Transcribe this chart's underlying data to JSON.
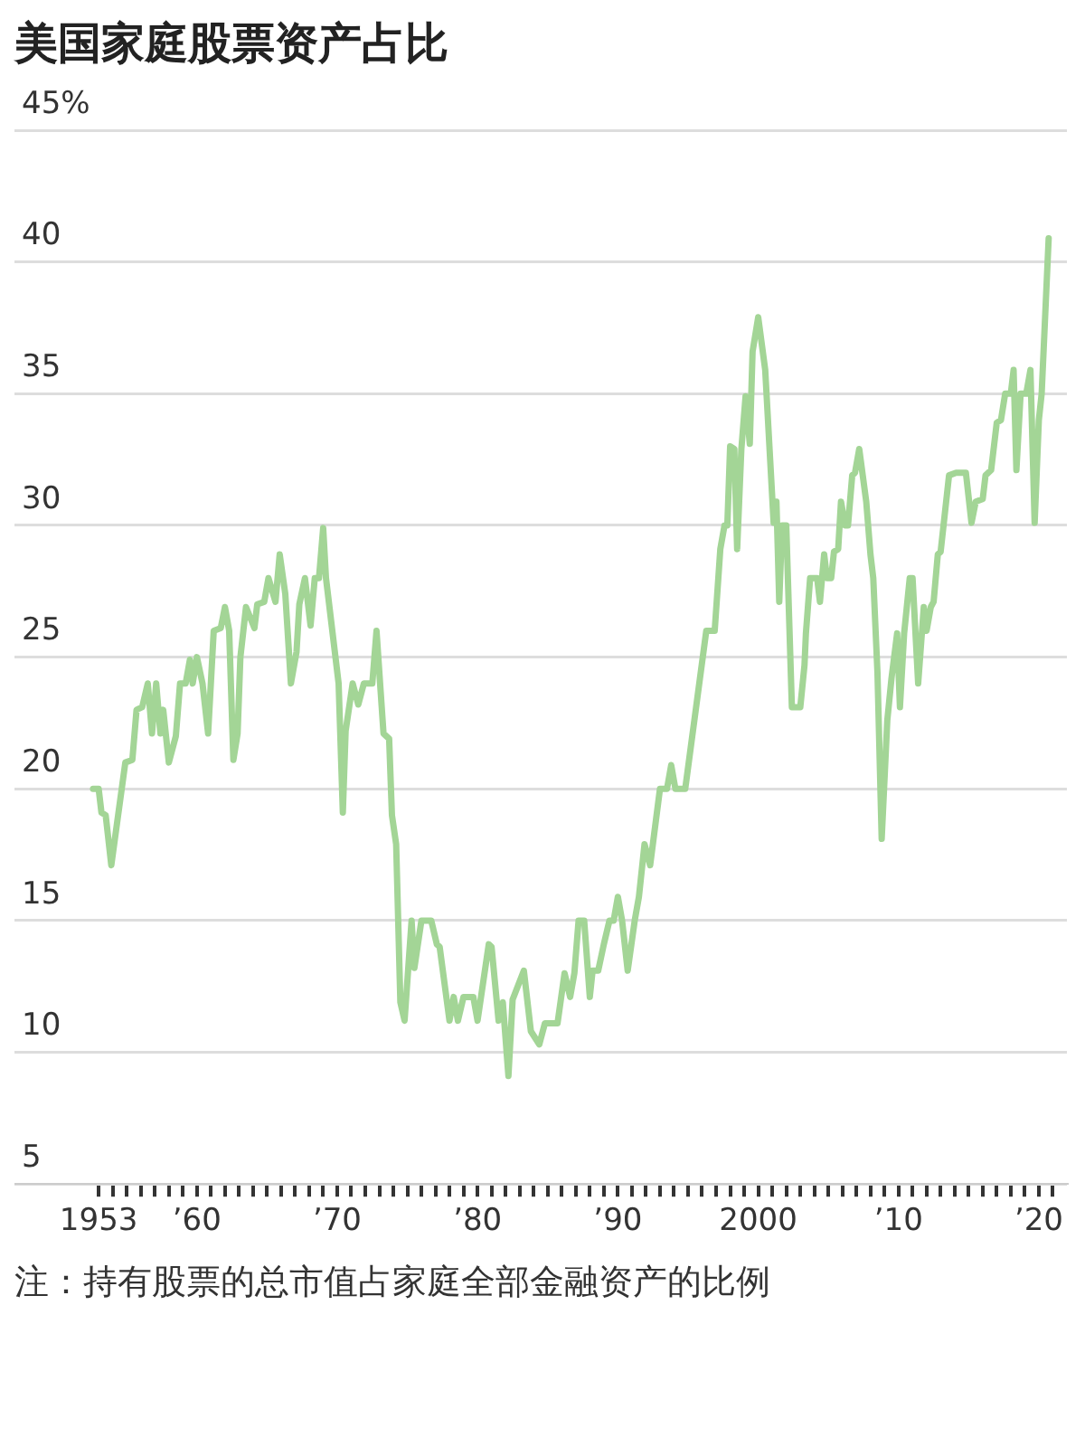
{
  "chart_data": {
    "type": "line",
    "title": "美国家庭股票资产占比",
    "annotations": [
      "注：持有股票的总市值占家庭全部金融资产的比例"
    ],
    "x": [
      1952.6,
      1953.0,
      1953.2,
      1953.5,
      1953.9,
      1954.9,
      1955.4,
      1955.7,
      1956.1,
      1956.5,
      1956.8,
      1957.1,
      1957.4,
      1957.6,
      1958.0,
      1958.5,
      1958.8,
      1959.2,
      1959.5,
      1959.7,
      1960.0,
      1960.4,
      1960.8,
      1961.2,
      1961.7,
      1962.0,
      1962.3,
      1962.6,
      1962.9,
      1963.1,
      1963.5,
      1964.1,
      1964.3,
      1964.8,
      1965.1,
      1965.6,
      1965.9,
      1966.3,
      1966.7,
      1967.1,
      1967.3,
      1967.7,
      1968.1,
      1968.4,
      1968.7,
      1969.0,
      1969.2,
      1970.1,
      1970.4,
      1970.6,
      1971.1,
      1971.5,
      1971.9,
      1972.5,
      1972.8,
      1973.3,
      1973.7,
      1973.9,
      1974.2,
      1974.5,
      1974.8,
      1975.3,
      1975.5,
      1976.0,
      1976.7,
      1977.1,
      1977.3,
      1978.0,
      1978.3,
      1978.6,
      1979.0,
      1979.7,
      1980.0,
      1980.8,
      1981.0,
      1981.5,
      1981.8,
      1982.2,
      1982.5,
      1983.3,
      1983.8,
      1984.4,
      1984.8,
      1985.7,
      1986.2,
      1986.6,
      1986.9,
      1987.2,
      1987.6,
      1988.0,
      1988.2,
      1988.6,
      1989.0,
      1989.4,
      1989.7,
      1990.0,
      1990.3,
      1990.7,
      1991.2,
      1991.5,
      1991.9,
      1992.3,
      1993.0,
      1993.5,
      1993.8,
      1994.1,
      1994.8,
      1996.3,
      1996.9,
      1997.3,
      1997.6,
      1997.8,
      1998.0,
      1998.3,
      1998.5,
      1998.8,
      1999.1,
      1999.4,
      1999.6,
      2000.0,
      2000.5,
      2001.1,
      2001.3,
      2001.5,
      2001.7,
      2002.0,
      2002.4,
      2003.0,
      2003.3,
      2003.4,
      2003.7,
      2004.2,
      2004.4,
      2004.7,
      2004.9,
      2005.2,
      2005.4,
      2005.7,
      2005.9,
      2006.2,
      2006.4,
      2006.7,
      2006.9,
      2007.2,
      2007.7,
      2008.0,
      2008.2,
      2008.5,
      2008.8,
      2009.2,
      2009.5,
      2009.9,
      2010.1,
      2010.4,
      2010.8,
      2011.0,
      2011.4,
      2011.8,
      2012.0,
      2012.3,
      2012.5,
      2012.8,
      2013.0,
      2013.6,
      2014.1,
      2014.8,
      2015.2,
      2015.5,
      2016.0,
      2016.2,
      2016.6,
      2017.0,
      2017.3,
      2017.6,
      2018.0,
      2018.2,
      2018.4,
      2018.7,
      2019.1,
      2019.4,
      2019.7,
      2020.0,
      2020.2,
      2020.7
    ],
    "series": [
      {
        "color": "#a3d596",
        "values": [
          20.0,
          20.0,
          19.1,
          19.0,
          17.1,
          21.0,
          21.1,
          23.0,
          23.1,
          24.0,
          22.1,
          24.0,
          22.1,
          23.0,
          21.0,
          22.0,
          24.0,
          24.0,
          24.9,
          24.0,
          25.0,
          24.0,
          22.1,
          26.0,
          26.1,
          26.9,
          26.0,
          21.1,
          22.1,
          25.0,
          26.9,
          26.1,
          27.0,
          27.1,
          28.0,
          27.1,
          28.9,
          27.4,
          24.0,
          25.2,
          27.0,
          28.0,
          26.2,
          28.0,
          28.0,
          29.9,
          28.0,
          24.0,
          19.1,
          22.2,
          24.0,
          23.2,
          24.0,
          24.0,
          26.0,
          22.1,
          21.9,
          19.0,
          17.9,
          11.9,
          11.2,
          15.0,
          13.2,
          15.0,
          15.0,
          14.1,
          14.0,
          11.2,
          12.1,
          11.2,
          12.1,
          12.1,
          11.2,
          14.1,
          14.0,
          11.2,
          11.9,
          9.1,
          12.0,
          13.1,
          10.8,
          10.3,
          11.1,
          11.1,
          13.0,
          12.1,
          13.0,
          15.0,
          15.0,
          12.1,
          13.1,
          13.1,
          14.1,
          15.0,
          15.0,
          15.9,
          15.0,
          13.1,
          15.0,
          15.9,
          17.9,
          17.1,
          20.0,
          20.0,
          20.9,
          20.0,
          20.0,
          26.0,
          26.0,
          29.1,
          30.0,
          30.0,
          33.0,
          32.9,
          29.1,
          32.9,
          34.9,
          33.1,
          36.6,
          37.9,
          35.9,
          30.1,
          30.9,
          27.1,
          30.0,
          30.0,
          23.1,
          23.1,
          24.7,
          25.9,
          28.0,
          28.0,
          27.1,
          28.9,
          28.0,
          28.0,
          29.0,
          29.1,
          30.9,
          30.0,
          30.0,
          31.9,
          32.0,
          32.9,
          30.9,
          28.9,
          28.0,
          24.4,
          18.1,
          22.6,
          24.2,
          25.9,
          23.1,
          25.9,
          28.0,
          28.0,
          24.0,
          26.9,
          26.0,
          26.9,
          27.1,
          28.9,
          29.0,
          31.9,
          32.0,
          32.0,
          30.1,
          30.9,
          31.0,
          31.9,
          32.1,
          33.9,
          34.0,
          35.0,
          35.0,
          35.9,
          32.1,
          35.0,
          35.0,
          35.9,
          30.1,
          34.0,
          35.0,
          40.9
        ]
      }
    ],
    "xlim": [
      1947,
      2022
    ],
    "xticks": [
      1953,
      {
        "value": 1954,
        "label": null
      },
      {
        "value": 1955,
        "label": null
      },
      {
        "value": 1956,
        "label": null
      },
      {
        "value": 1957,
        "label": null
      },
      {
        "value": 1958,
        "label": null
      },
      {
        "value": 1959,
        "label": null
      },
      {
        "value": 1960,
        "label": "’60"
      },
      {
        "value": 1961,
        "label": null
      },
      {
        "value": 1962,
        "label": null
      },
      {
        "value": 1963,
        "label": null
      },
      {
        "value": 1964,
        "label": null
      },
      {
        "value": 1965,
        "label": null
      },
      {
        "value": 1966,
        "label": null
      },
      {
        "value": 1967,
        "label": null
      },
      {
        "value": 1968,
        "label": null
      },
      {
        "value": 1969,
        "label": null
      },
      {
        "value": 1970,
        "label": "’70"
      },
      {
        "value": 1971,
        "label": null
      },
      {
        "value": 1972,
        "label": null
      },
      {
        "value": 1973,
        "label": null
      },
      {
        "value": 1974,
        "label": null
      },
      {
        "value": 1975,
        "label": null
      },
      {
        "value": 1976,
        "label": null
      },
      {
        "value": 1977,
        "label": null
      },
      {
        "value": 1978,
        "label": null
      },
      {
        "value": 1979,
        "label": null
      },
      {
        "value": 1980,
        "label": "’80"
      },
      {
        "value": 1981,
        "label": null
      },
      {
        "value": 1982,
        "label": null
      },
      {
        "value": 1983,
        "label": null
      },
      {
        "value": 1984,
        "label": null
      },
      {
        "value": 1985,
        "label": null
      },
      {
        "value": 1986,
        "label": null
      },
      {
        "value": 1987,
        "label": null
      },
      {
        "value": 1988,
        "label": null
      },
      {
        "value": 1989,
        "label": null
      },
      {
        "value": 1990,
        "label": "’90"
      },
      {
        "value": 1991,
        "label": null
      },
      {
        "value": 1992,
        "label": null
      },
      {
        "value": 1993,
        "label": null
      },
      {
        "value": 1994,
        "label": null
      },
      {
        "value": 1995,
        "label": null
      },
      {
        "value": 1996,
        "label": null
      },
      {
        "value": 1997,
        "label": null
      },
      {
        "value": 1998,
        "label": null
      },
      {
        "value": 1999,
        "label": null
      },
      2000,
      {
        "value": 2001,
        "label": null
      },
      {
        "value": 2002,
        "label": null
      },
      {
        "value": 2003,
        "label": null
      },
      {
        "value": 2004,
        "label": null
      },
      {
        "value": 2005,
        "label": null
      },
      {
        "value": 2006,
        "label": null
      },
      {
        "value": 2007,
        "label": null
      },
      {
        "value": 2008,
        "label": null
      },
      {
        "value": 2009,
        "label": null
      },
      {
        "value": 2010,
        "label": "’10"
      },
      {
        "value": 2011,
        "label": null
      },
      {
        "value": 2012,
        "label": null
      },
      {
        "value": 2013,
        "label": null
      },
      {
        "value": 2014,
        "label": null
      },
      {
        "value": 2015,
        "label": null
      },
      {
        "value": 2016,
        "label": null
      },
      {
        "value": 2017,
        "label": null
      },
      {
        "value": 2018,
        "label": null
      },
      {
        "value": 2019,
        "label": null
      },
      {
        "value": 2020,
        "label": "’20"
      },
      {
        "value": 2021,
        "label": null
      }
    ],
    "ylim": [
      5,
      45
    ],
    "yticks": [
      5,
      10,
      15,
      20,
      25,
      30,
      35,
      40,
      {
        "value": 45,
        "label": "45%"
      }
    ],
    "grid": "y",
    "legend": false,
    "marker": "none",
    "line_style": "solid"
  }
}
